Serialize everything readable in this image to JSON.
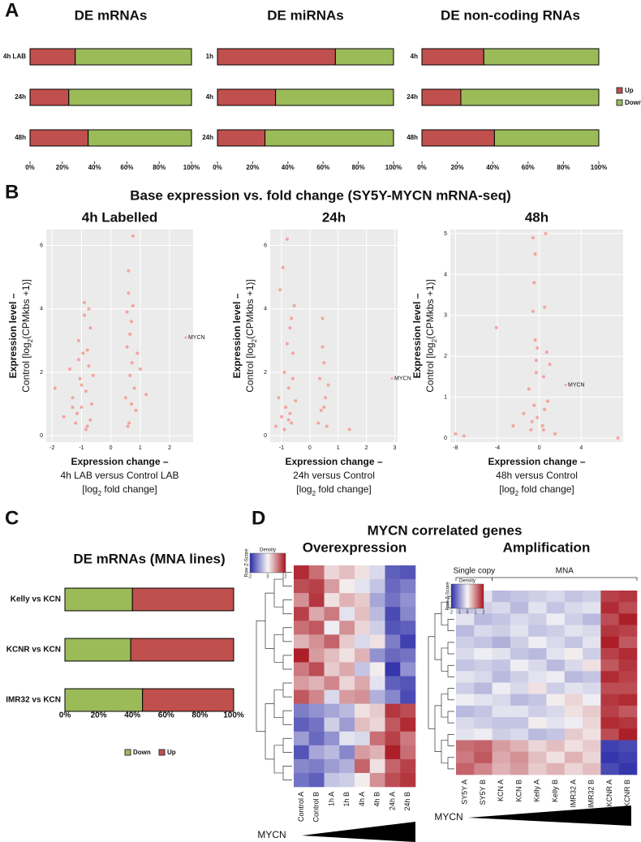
{
  "panel_labels": [
    "A",
    "B",
    "C",
    "D"
  ],
  "panel_titles": {
    "B": "Base expression vs. fold change (SY5Y-MYCN mRNA-seq)",
    "D": "MYCN correlated genes"
  },
  "chart_data": [
    {
      "type": "hbar",
      "title": "DE mRNAs",
      "categories": [
        "4h LAB",
        "24h",
        "48h"
      ],
      "series": [
        {
          "name": "Up",
          "color": "#c0504d",
          "values": [
            28,
            24,
            36
          ]
        },
        {
          "name": "Down",
          "color": "#9bbb59",
          "values": [
            72,
            76,
            64
          ]
        }
      ],
      "xlim": [
        0,
        100
      ],
      "xticks": [
        {
          "value": 0,
          "label": "0%"
        },
        {
          "value": 20,
          "label": "20%"
        },
        {
          "value": 40,
          "label": "40%"
        },
        {
          "value": 60,
          "label": "60%"
        },
        {
          "value": 80,
          "label": "80%"
        },
        {
          "value": 100,
          "label": "100%"
        }
      ],
      "legend": false
    },
    {
      "type": "hbar",
      "title": "DE miRNAs",
      "categories": [
        "1h",
        "4h",
        "24h"
      ],
      "series": [
        {
          "name": "Up",
          "color": "#c0504d",
          "values": [
            67,
            33,
            27
          ]
        },
        {
          "name": "Down",
          "color": "#9bbb59",
          "values": [
            33,
            67,
            73
          ]
        }
      ],
      "xlim": [
        0,
        100
      ],
      "xticks": [
        {
          "value": 0,
          "label": "0%"
        },
        {
          "value": 20,
          "label": "20%"
        },
        {
          "value": 40,
          "label": "40%"
        },
        {
          "value": 60,
          "label": "60%"
        },
        {
          "value": 80,
          "label": "80%"
        },
        {
          "value": 100,
          "label": "100%"
        }
      ],
      "legend": false
    },
    {
      "type": "hbar",
      "title": "DE non-coding RNAs",
      "categories": [
        "4h",
        "24h",
        "48h"
      ],
      "series": [
        {
          "name": "Up",
          "color": "#c0504d",
          "values": [
            35,
            22,
            41
          ]
        },
        {
          "name": "Down",
          "color": "#9bbb59",
          "values": [
            65,
            78,
            59
          ]
        }
      ],
      "xlim": [
        0,
        100
      ],
      "xticks": [
        {
          "value": 0,
          "label": "0%"
        },
        {
          "value": 20,
          "label": "20%"
        },
        {
          "value": 40,
          "label": "40%"
        },
        {
          "value": 60,
          "label": "60%"
        },
        {
          "value": 80,
          "label": "80%"
        },
        {
          "value": 100,
          "label": "100%"
        }
      ],
      "legend": "right"
    },
    {
      "type": "scatter",
      "title": "4h Labelled",
      "color": "#f8766d",
      "x_label": [
        "Expression change –",
        "4h LAB versus Control LAB",
        [
          "[log",
          "2",
          " fold change]"
        ]
      ],
      "y_label": [
        "Expression level –",
        [
          "Control [log",
          "2",
          "(CPMkbs +1)]"
        ]
      ],
      "x": [
        -1.9,
        -1.6,
        -1.4,
        -1.3,
        -1.2,
        -1.1,
        -1.05,
        -1.0,
        -0.95,
        -0.9,
        -0.85,
        -0.8,
        -0.75,
        -0.7,
        -0.65,
        -1.15,
        -0.9,
        -0.8,
        -1.0,
        -0.7,
        -1.3,
        -0.6,
        -0.85,
        -1.1,
        -0.75,
        0.5,
        0.55,
        0.6,
        0.62,
        0.65,
        0.7,
        0.72,
        0.75,
        0.8,
        0.85,
        0.9,
        0.6,
        0.7,
        0.65,
        0.58,
        0.75,
        1.0,
        1.2,
        0.55
      ],
      "y": [
        1.5,
        0.6,
        2.1,
        1.2,
        0.4,
        3.0,
        1.8,
        0.9,
        2.6,
        4.2,
        1.4,
        0.3,
        2.2,
        3.4,
        1.0,
        0.7,
        3.8,
        2.7,
        1.6,
        0.5,
        0.9,
        1.9,
        0.2,
        2.4,
        4.0,
        1.2,
        2.8,
        4.5,
        0.4,
        1.9,
        3.6,
        2.3,
        6.3,
        1.5,
        0.8,
        2.6,
        5.2,
        1.0,
        3.2,
        0.3,
        4.1,
        2.1,
        1.3,
        3.9
      ],
      "annotation": {
        "text": "MYCN",
        "x": 2.55,
        "y": 3.1
      },
      "xlim": [
        -2.2,
        2.8
      ],
      "xticks": [
        -2,
        -1,
        0,
        1,
        2
      ],
      "ylim": [
        -0.2,
        6.5
      ],
      "yticks": [
        0,
        2,
        4,
        6
      ],
      "grid": true
    },
    {
      "type": "scatter",
      "title": "24h",
      "color": "#f8766d",
      "x_label": [
        "Expression change –",
        "24h versus Control",
        [
          "[log",
          "2",
          " fold change]"
        ]
      ],
      "y_label": [
        "Expression level –",
        [
          "Control [log",
          "2",
          "(CPMkbs +1)]"
        ]
      ],
      "x": [
        -1.2,
        -1.1,
        -1.0,
        -0.95,
        -0.9,
        -0.85,
        -0.8,
        -0.75,
        -0.7,
        -0.65,
        -0.6,
        -0.55,
        -0.5,
        -0.9,
        -0.8,
        -0.7,
        -0.6,
        -1.05,
        -0.75,
        -0.65,
        0.3,
        0.35,
        0.4,
        0.45,
        0.5,
        0.55,
        0.6,
        0.65,
        0.45,
        0.5,
        1.4
      ],
      "y": [
        0.3,
        1.2,
        0.6,
        5.3,
        2.0,
        0.9,
        6.2,
        1.5,
        3.4,
        0.4,
        2.6,
        4.1,
        1.1,
        0.2,
        2.9,
        0.7,
        1.8,
        4.6,
        0.5,
        3.7,
        0.4,
        1.8,
        0.8,
        3.7,
        2.3,
        1.2,
        0.3,
        1.6,
        2.8,
        0.9,
        0.2
      ],
      "annotation": {
        "text": "MYCN",
        "x": 2.9,
        "y": 1.8
      },
      "xlim": [
        -1.4,
        3.1
      ],
      "xticks": [
        -1,
        0,
        1,
        2,
        3
      ],
      "ylim": [
        -0.2,
        6.5
      ],
      "yticks": [
        0,
        2,
        4,
        6
      ],
      "grid": true
    },
    {
      "type": "scatter",
      "title": "48h",
      "color": "#f8766d",
      "x_label": [
        "Expression change –",
        "48h versus Control",
        [
          "[log",
          "2",
          " fold change]"
        ]
      ],
      "y_label": [
        "Expression level –",
        [
          "Control [log",
          "2",
          "(CPMkbs +1)]"
        ]
      ],
      "x": [
        -8,
        -7.2,
        -4.1,
        -2.5,
        -1.5,
        -1.0,
        -0.8,
        -0.6,
        -0.5,
        -0.4,
        -0.3,
        -0.2,
        -0.6,
        -0.5,
        -0.4,
        -0.3,
        -0.7,
        -0.2,
        0.3,
        0.4,
        0.5,
        0.6,
        0.7,
        0.8,
        0.5,
        0.4,
        1.0,
        1.5,
        7.5
      ],
      "y": [
        0.1,
        0.05,
        2.7,
        0.3,
        0.6,
        1.2,
        0.2,
        4.9,
        3.8,
        2.4,
        1.6,
        0.5,
        3.1,
        0.8,
        4.5,
        1.9,
        0.4,
        2.2,
        0.3,
        1.5,
        0.7,
        5.0,
        2.1,
        0.9,
        3.2,
        0.2,
        1.8,
        0.1,
        0.0
      ],
      "annotation": {
        "text": "MYCN",
        "x": 2.5,
        "y": 1.3
      },
      "xlim": [
        -8.5,
        8
      ],
      "xticks": [
        -8,
        -4,
        0,
        4
      ],
      "ylim": [
        -0.1,
        5.1
      ],
      "yticks": [
        0,
        1,
        2,
        3,
        4,
        5
      ],
      "grid": true
    },
    {
      "type": "hbar",
      "title": "DE mRNAs (MNA lines)",
      "categories": [
        "Kelly vs KCN",
        "KCNR vs KCN",
        "IMR32 vs KCN"
      ],
      "series": [
        {
          "name": "Down",
          "color": "#9bbb59",
          "values": [
            40,
            39,
            46
          ]
        },
        {
          "name": "Up",
          "color": "#c0504d",
          "values": [
            60,
            61,
            54
          ]
        }
      ],
      "xlim": [
        0,
        100
      ],
      "xticks": [
        {
          "value": 0,
          "label": "0%"
        },
        {
          "value": 20,
          "label": "20%"
        },
        {
          "value": 40,
          "label": "40%"
        },
        {
          "value": 60,
          "label": "60%"
        },
        {
          "value": 80,
          "label": "80%"
        },
        {
          "value": 100,
          "label": "100%"
        }
      ],
      "legend": "bottom"
    },
    {
      "type": "heatmap",
      "title": "Overexpression",
      "key_title": "Density",
      "key_label": "Row Z-Score",
      "gradient_label": "MYCN",
      "colors": [
        "#2c2ca8",
        "#f7f7f7",
        "#a8141e"
      ],
      "zlim": [
        -2,
        2
      ],
      "zticks": [
        -2,
        0,
        2
      ],
      "columns": [
        "Control A",
        "Control B",
        "1h A",
        "1h B",
        "4h A",
        "4h B",
        "24h A",
        "24h B"
      ],
      "values": [
        [
          1.8,
          1.2,
          0.3,
          0.5,
          0.2,
          -0.3,
          -1.5,
          -1.6
        ],
        [
          1.5,
          1.6,
          0.8,
          0.1,
          -0.2,
          -0.5,
          -1.4,
          -1.2
        ],
        [
          0.9,
          1.7,
          0.2,
          0.6,
          0.4,
          -0.8,
          -1.3,
          -1.0
        ],
        [
          1.6,
          0.7,
          1.1,
          -0.2,
          0.5,
          -0.6,
          -1.7,
          -1.1
        ],
        [
          1.2,
          1.4,
          -0.1,
          0.9,
          0.3,
          -0.4,
          -1.6,
          -1.5
        ],
        [
          0.6,
          0.9,
          1.3,
          0.4,
          -0.3,
          0.2,
          -1.2,
          -1.8
        ],
        [
          1.9,
          0.8,
          0.5,
          0.2,
          0.6,
          -1.0,
          -1.4,
          -1.3
        ],
        [
          1.1,
          1.5,
          0.4,
          0.7,
          -0.5,
          0.1,
          -1.9,
          -1.0
        ],
        [
          0.8,
          0.6,
          1.0,
          0.3,
          0.7,
          -0.2,
          -1.5,
          -1.6
        ],
        [
          1.4,
          1.0,
          -0.3,
          0.8,
          0.9,
          -0.7,
          -1.1,
          -1.7
        ],
        [
          -1.2,
          -1.0,
          -0.8,
          -0.6,
          0.2,
          0.4,
          1.7,
          1.5
        ],
        [
          -1.5,
          -1.3,
          -0.4,
          -0.9,
          0.5,
          0.3,
          1.4,
          1.8
        ],
        [
          -0.9,
          -1.4,
          -1.0,
          -0.2,
          -0.3,
          1.2,
          1.6,
          1.1
        ],
        [
          -1.6,
          -0.8,
          -0.6,
          -1.1,
          0.8,
          0.6,
          1.9,
          1.2
        ],
        [
          -1.1,
          -1.2,
          -0.9,
          -0.7,
          1.3,
          0.2,
          1.3,
          1.6
        ],
        [
          -1.3,
          -1.5,
          -0.5,
          -0.4,
          0.1,
          0.9,
          1.5,
          1.7
        ]
      ]
    },
    {
      "type": "heatmap",
      "title": "Amplification",
      "key_title": "Density",
      "key_label": "Row Z-Score",
      "gradient_label": "MYCN",
      "colors": [
        "#2c2ca8",
        "#f7f7f7",
        "#a8141e"
      ],
      "zlim": [
        -2,
        2
      ],
      "zticks": [
        -2,
        -1,
        0,
        1,
        2
      ],
      "groups": [
        {
          "label": "Single copy",
          "size": 2
        },
        {
          "label": "MNA",
          "size": 8
        }
      ],
      "columns": [
        "SY5Y A",
        "SY5Y B",
        "KCN A",
        "KCN B",
        "Kelly A",
        "Kelly B",
        "IMR32 A",
        "IMR32 B",
        "KCNR A",
        "KCNR B"
      ],
      "values": [
        [
          -0.3,
          -0.2,
          -0.6,
          -0.5,
          -0.4,
          -0.3,
          -0.5,
          -0.4,
          1.6,
          1.7
        ],
        [
          -0.5,
          -0.4,
          -0.3,
          -0.6,
          -0.2,
          -0.5,
          -0.3,
          -0.2,
          1.8,
          1.5
        ],
        [
          -0.2,
          -0.6,
          -0.5,
          -0.3,
          -0.4,
          -0.1,
          -0.4,
          -0.6,
          1.5,
          1.9
        ],
        [
          -0.6,
          -0.3,
          -0.4,
          -0.2,
          -0.5,
          -0.4,
          -0.2,
          -0.3,
          1.7,
          1.6
        ],
        [
          -0.4,
          -0.5,
          -0.7,
          -0.4,
          -0.1,
          -0.3,
          -0.5,
          -0.2,
          1.9,
          1.4
        ],
        [
          -0.3,
          -0.1,
          -0.2,
          -0.5,
          -0.6,
          -0.2,
          0.1,
          -0.4,
          1.6,
          1.8
        ],
        [
          -0.5,
          -0.4,
          -0.5,
          -0.1,
          -0.3,
          -0.6,
          -0.3,
          0.2,
          1.4,
          1.7
        ],
        [
          -0.2,
          -0.3,
          -0.6,
          -0.4,
          -0.2,
          -0.1,
          -0.6,
          -0.5,
          1.8,
          1.6
        ],
        [
          -0.4,
          -0.6,
          -0.1,
          -0.3,
          0.2,
          -0.4,
          -0.2,
          -0.3,
          1.5,
          1.5
        ],
        [
          -0.1,
          -0.2,
          -0.3,
          -0.6,
          -0.5,
          0.1,
          0.3,
          -0.1,
          1.7,
          1.8
        ],
        [
          -0.6,
          -0.5,
          -0.2,
          -0.2,
          -0.4,
          -0.3,
          0.2,
          0.4,
          1.6,
          1.4
        ],
        [
          -0.3,
          -0.4,
          -0.5,
          -0.5,
          0.1,
          -0.2,
          -0.1,
          0.3,
          1.8,
          1.7
        ],
        [
          -0.2,
          -0.1,
          -0.4,
          -0.3,
          -0.6,
          -0.5,
          0.4,
          0.2,
          1.5,
          1.9
        ],
        [
          1.2,
          1.3,
          0.8,
          0.6,
          0.3,
          0.5,
          0.2,
          0.4,
          -1.8,
          -1.7
        ],
        [
          1.1,
          1.4,
          0.7,
          0.9,
          0.5,
          0.2,
          0.6,
          0.3,
          -1.9,
          -1.8
        ],
        [
          1.3,
          1.0,
          0.6,
          0.8,
          0.4,
          0.6,
          0.3,
          0.5,
          -1.7,
          -1.9
        ]
      ]
    }
  ]
}
